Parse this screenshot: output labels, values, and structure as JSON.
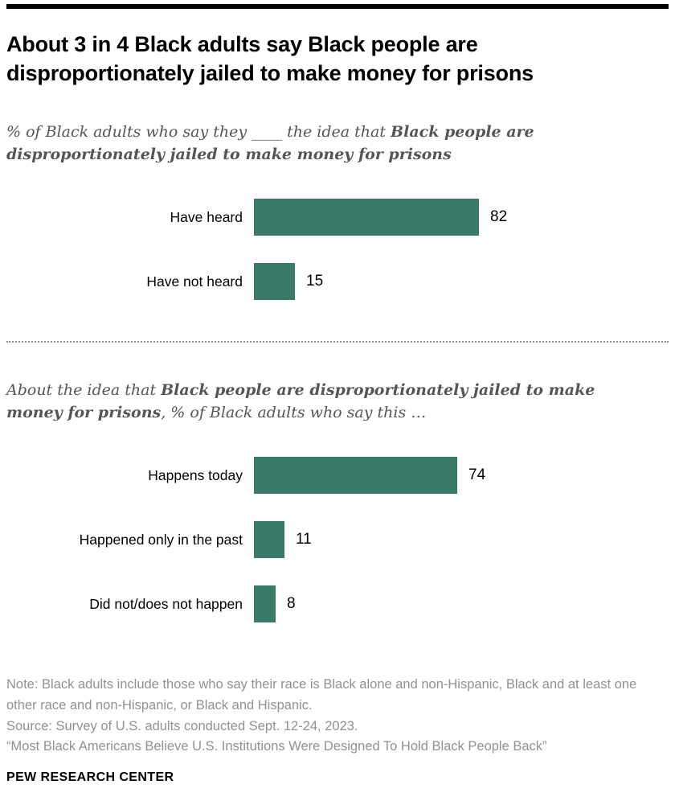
{
  "accent_color": "#3a7a68",
  "header": {
    "title": "About 3 in 4 Black adults say Black people are disproportionately jailed to make money for prisons"
  },
  "subtitle1": {
    "prefix": "% of Black adults who say they ____ the idea that ",
    "bold": "Black people are disproportionately jailed to make money for prisons"
  },
  "subtitle2": {
    "prefix": "About the idea that ",
    "bold": "Black people are disproportionately jailed to make money for prisons",
    "suffix": ", % of Black adults who say this …"
  },
  "chart_data": [
    {
      "type": "bar",
      "orientation": "horizontal",
      "categories": [
        "Have heard",
        "Have not heard"
      ],
      "values": [
        82,
        15
      ],
      "xlim": [
        0,
        100
      ],
      "bar_color": "#3a7a68",
      "value_labels": true,
      "grid": false,
      "legend": "none"
    },
    {
      "type": "bar",
      "orientation": "horizontal",
      "categories": [
        "Happens today",
        "Happened only in the past",
        "Did not/does not happen"
      ],
      "values": [
        74,
        11,
        8
      ],
      "xlim": [
        0,
        100
      ],
      "bar_color": "#3a7a68",
      "value_labels": true,
      "grid": false,
      "legend": "none"
    }
  ],
  "notes": {
    "note": "Note: Black adults include those who say their race is Black alone and non-Hispanic, Black and at least one other race and non-Hispanic, or Black and Hispanic.",
    "source": "Source: Survey of U.S. adults conducted Sept. 12-24, 2023.",
    "report": "“Most Black Americans Believe U.S. Institutions Were Designed To Hold Black People Back”"
  },
  "footer": {
    "brand": "PEW RESEARCH CENTER"
  }
}
